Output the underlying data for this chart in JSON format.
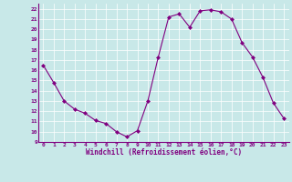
{
  "x": [
    0,
    1,
    2,
    3,
    4,
    5,
    6,
    7,
    8,
    9,
    10,
    11,
    12,
    13,
    14,
    15,
    16,
    17,
    18,
    19,
    20,
    21,
    22,
    23
  ],
  "y": [
    16.5,
    14.8,
    13.0,
    12.2,
    11.8,
    11.1,
    10.8,
    10.0,
    9.5,
    10.1,
    13.0,
    17.3,
    21.2,
    21.5,
    20.2,
    21.8,
    21.9,
    21.7,
    21.0,
    18.7,
    17.3,
    15.3,
    12.8,
    11.3
  ],
  "line_color": "#800080",
  "marker": "D",
  "marker_size": 2,
  "bg_color": "#c8e8e8",
  "grid_color": "#ffffff",
  "xlabel": "Windchill (Refroidissement éolien,°C)",
  "xlabel_color": "#800080",
  "tick_color": "#800080",
  "axis_color": "#800080",
  "ylim": [
    9,
    22.5
  ],
  "xlim": [
    -0.5,
    23.5
  ],
  "yticks": [
    9,
    10,
    11,
    12,
    13,
    14,
    15,
    16,
    17,
    18,
    19,
    20,
    21,
    22
  ],
  "xticks": [
    0,
    1,
    2,
    3,
    4,
    5,
    6,
    7,
    8,
    9,
    10,
    11,
    12,
    13,
    14,
    15,
    16,
    17,
    18,
    19,
    20,
    21,
    22,
    23
  ]
}
